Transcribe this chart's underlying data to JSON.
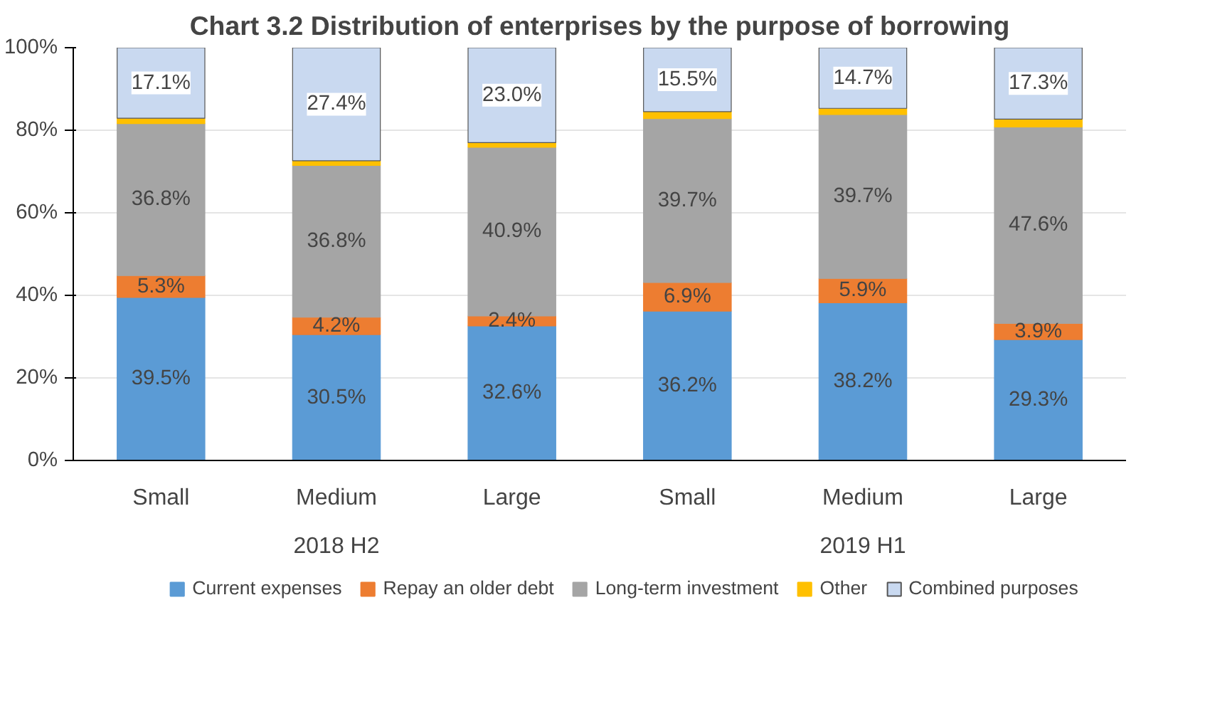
{
  "chart_data": {
    "type": "bar",
    "title": "Chart 3.2 Distribution of enterprises by the purpose of borrowing",
    "categories": [
      "Small",
      "Medium",
      "Large",
      "Small",
      "Medium",
      "Large"
    ],
    "annotations": [
      "2018 H2",
      "2019 H1"
    ],
    "stacked": true,
    "series": [
      {
        "name": "Current expenses",
        "color": "#5b9bd5",
        "values": [
          39.5,
          30.5,
          32.6,
          36.2,
          38.2,
          29.3
        ],
        "value_labels": [
          "39.5%",
          "30.5%",
          "32.6%",
          "36.2%",
          "38.2%",
          "29.3%"
        ]
      },
      {
        "name": "Repay an older debt",
        "color": "#ed7d31",
        "values": [
          5.3,
          4.2,
          2.4,
          6.9,
          5.9,
          3.9
        ],
        "value_labels": [
          "5.3%",
          "4.2%",
          "2.4%",
          "6.9%",
          "5.9%",
          "3.9%"
        ]
      },
      {
        "name": "Long-term investment",
        "color": "#a5a5a5",
        "values": [
          36.8,
          36.8,
          40.9,
          39.7,
          39.7,
          47.6
        ],
        "value_labels": [
          "36.8%",
          "36.8%",
          "40.9%",
          "39.7%",
          "39.7%",
          "47.6%"
        ]
      },
      {
        "name": "Other",
        "color": "#ffc000",
        "values": [
          1.3,
          1.1,
          1.1,
          1.7,
          1.5,
          1.9
        ],
        "value_labels": [
          null,
          null,
          null,
          null,
          null,
          null
        ]
      },
      {
        "name": "Combined purposes",
        "color": "#c9d9f0",
        "values": [
          17.1,
          27.4,
          23.0,
          15.5,
          14.7,
          17.3
        ],
        "value_labels": [
          "17.1%",
          "27.4%",
          "23.0%",
          "15.5%",
          "14.7%",
          "17.3%"
        ]
      }
    ],
    "ylim": [
      0,
      100
    ],
    "yticks": [
      {
        "value": 0,
        "label": "0%"
      },
      {
        "value": 20,
        "label": "20%"
      },
      {
        "value": 40,
        "label": "40%"
      },
      {
        "value": 60,
        "label": "60%"
      },
      {
        "value": 80,
        "label": "80%"
      },
      {
        "value": 100,
        "label": "100%"
      }
    ],
    "grid": "y",
    "legend": "bottom"
  }
}
